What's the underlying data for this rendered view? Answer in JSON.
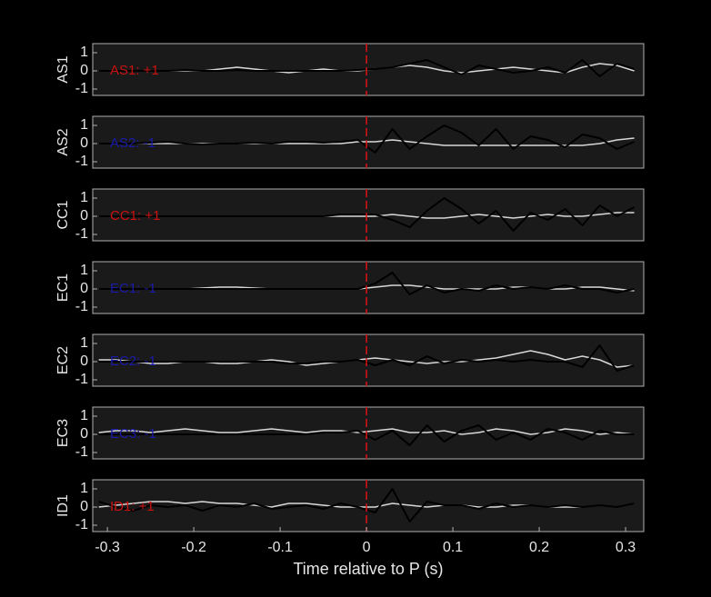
{
  "chart_data": [
    {
      "type": "line",
      "ylabel": "AS1",
      "annotation": "AS1: +1",
      "annotation_color": "#cc1111",
      "vline": 0,
      "vline_color": "#dd1111",
      "x": [
        -0.31,
        -0.29,
        -0.27,
        -0.25,
        -0.23,
        -0.21,
        -0.19,
        -0.17,
        -0.15,
        -0.13,
        -0.11,
        -0.09,
        -0.07,
        -0.05,
        -0.03,
        -0.01,
        0.01,
        0.03,
        0.05,
        0.07,
        0.09,
        0.11,
        0.13,
        0.15,
        0.17,
        0.19,
        0.21,
        0.23,
        0.25,
        0.27,
        0.29,
        0.31
      ],
      "xlim": [
        -0.317,
        0.321
      ],
      "ylim": [
        -1.35,
        1.5
      ],
      "yticks": [
        -1,
        0,
        1
      ],
      "series": [
        {
          "color": "#d8d8d8",
          "values": [
            0,
            0,
            0,
            0,
            0,
            0,
            0,
            0.1,
            0.2,
            0.1,
            0,
            -0.1,
            0,
            0.1,
            0,
            0,
            0.1,
            0.2,
            0.3,
            0.2,
            0,
            -0.1,
            0,
            0.1,
            0.2,
            0.1,
            0,
            -0.1,
            0.2,
            0.4,
            0.3,
            0
          ]
        },
        {
          "color": "#000000",
          "values": [
            0,
            0,
            0,
            0,
            0,
            0.05,
            0,
            0,
            0.05,
            0,
            0,
            0,
            0,
            0,
            0,
            0.05,
            0.1,
            0.2,
            0.4,
            0.6,
            0.2,
            -0.2,
            0.3,
            0.1,
            -0.1,
            0,
            0.2,
            -0.1,
            0.6,
            -0.3,
            0.4,
            0.1
          ]
        }
      ]
    },
    {
      "type": "line",
      "ylabel": "AS2",
      "annotation": "AS2: -1",
      "annotation_color": "#1a1aaa",
      "vline": 0,
      "vline_color": "#dd1111",
      "x": [
        -0.31,
        -0.29,
        -0.27,
        -0.25,
        -0.23,
        -0.21,
        -0.19,
        -0.17,
        -0.15,
        -0.13,
        -0.11,
        -0.09,
        -0.07,
        -0.05,
        -0.03,
        -0.01,
        0.01,
        0.03,
        0.05,
        0.07,
        0.09,
        0.11,
        0.13,
        0.15,
        0.17,
        0.19,
        0.21,
        0.23,
        0.25,
        0.27,
        0.29,
        0.31
      ],
      "xlim": [
        -0.317,
        0.321
      ],
      "ylim": [
        -1.35,
        1.5
      ],
      "yticks": [
        -1,
        0,
        1
      ],
      "series": [
        {
          "color": "#d8d8d8",
          "values": [
            0,
            0,
            0,
            0,
            0,
            0,
            0,
            0,
            0,
            0,
            0,
            0,
            0,
            0,
            0,
            0.1,
            0.1,
            0.2,
            0.1,
            0,
            -0.1,
            -0.1,
            -0.1,
            -0.1,
            -0.1,
            -0.1,
            -0.1,
            -0.1,
            -0.1,
            0,
            0.2,
            0.3
          ]
        },
        {
          "color": "#000000",
          "values": [
            0,
            0,
            0,
            0.05,
            0.1,
            0,
            -0.05,
            0,
            0,
            0.05,
            0,
            0.1,
            0.1,
            0.05,
            0.1,
            0.2,
            -0.5,
            0.8,
            -0.3,
            0.4,
            1.0,
            0.6,
            -0.1,
            0.8,
            -0.3,
            0.4,
            0.2,
            -0.2,
            0.5,
            0.3,
            -0.3,
            0.1
          ]
        }
      ]
    },
    {
      "type": "line",
      "ylabel": "CC1",
      "annotation": "CC1: +1",
      "annotation_color": "#cc1111",
      "vline": 0,
      "vline_color": "#dd1111",
      "x": [
        -0.31,
        -0.29,
        -0.27,
        -0.25,
        -0.23,
        -0.21,
        -0.19,
        -0.17,
        -0.15,
        -0.13,
        -0.11,
        -0.09,
        -0.07,
        -0.05,
        -0.03,
        -0.01,
        0.01,
        0.03,
        0.05,
        0.07,
        0.09,
        0.11,
        0.13,
        0.15,
        0.17,
        0.19,
        0.21,
        0.23,
        0.25,
        0.27,
        0.29,
        0.31
      ],
      "xlim": [
        -0.317,
        0.321
      ],
      "ylim": [
        -1.35,
        1.5
      ],
      "yticks": [
        -1,
        0,
        1
      ],
      "series": [
        {
          "color": "#d8d8d8",
          "values": [
            0,
            0,
            0,
            0,
            0,
            0,
            0,
            0,
            0,
            0,
            0,
            0,
            0,
            0,
            0,
            0,
            0,
            0.1,
            0,
            -0.1,
            -0.1,
            0,
            0.1,
            0,
            -0.1,
            0,
            0.1,
            0,
            0,
            0.1,
            0.2,
            0.2
          ]
        },
        {
          "color": "#000000",
          "values": [
            0,
            0,
            0,
            0,
            0,
            0,
            0,
            0,
            0,
            0,
            0,
            0,
            0,
            0,
            0.1,
            0.1,
            0.1,
            -0.2,
            -0.6,
            0.3,
            1.0,
            0.4,
            -0.4,
            0.3,
            -0.8,
            0.2,
            -0.2,
            0.4,
            -0.5,
            0.6,
            0,
            0.5
          ]
        }
      ]
    },
    {
      "type": "line",
      "ylabel": "EC1",
      "annotation": "EC1: -1",
      "annotation_color": "#1a1aaa",
      "vline": 0,
      "vline_color": "#dd1111",
      "x": [
        -0.31,
        -0.29,
        -0.27,
        -0.25,
        -0.23,
        -0.21,
        -0.19,
        -0.17,
        -0.15,
        -0.13,
        -0.11,
        -0.09,
        -0.07,
        -0.05,
        -0.03,
        -0.01,
        0.01,
        0.03,
        0.05,
        0.07,
        0.09,
        0.11,
        0.13,
        0.15,
        0.17,
        0.19,
        0.21,
        0.23,
        0.25,
        0.27,
        0.29,
        0.31
      ],
      "xlim": [
        -0.317,
        0.321
      ],
      "ylim": [
        -1.35,
        1.5
      ],
      "yticks": [
        -1,
        0,
        1
      ],
      "series": [
        {
          "color": "#d8d8d8",
          "values": [
            0,
            0,
            0,
            0,
            0,
            0,
            0.05,
            0.1,
            0.1,
            0.05,
            0,
            0,
            0,
            0,
            0,
            0,
            0.1,
            0.2,
            0.2,
            0.1,
            0,
            0,
            0,
            0,
            0.1,
            0.1,
            0,
            0,
            0.1,
            0.1,
            0,
            -0.1
          ]
        },
        {
          "color": "#000000",
          "values": [
            0,
            0,
            0,
            0,
            0,
            0,
            0,
            0,
            0,
            0,
            0,
            0,
            0,
            0,
            0,
            0,
            0.3,
            0.9,
            -0.3,
            0.2,
            -0.2,
            0,
            -0.1,
            0.2,
            0,
            0.1,
            0,
            0.2,
            0,
            0,
            -0.2,
            0
          ]
        }
      ]
    },
    {
      "type": "line",
      "ylabel": "EC2",
      "annotation": "EC2: -1",
      "annotation_color": "#1a1aaa",
      "vline": 0,
      "vline_color": "#dd1111",
      "x": [
        -0.31,
        -0.29,
        -0.27,
        -0.25,
        -0.23,
        -0.21,
        -0.19,
        -0.17,
        -0.15,
        -0.13,
        -0.11,
        -0.09,
        -0.07,
        -0.05,
        -0.03,
        -0.01,
        0.01,
        0.03,
        0.05,
        0.07,
        0.09,
        0.11,
        0.13,
        0.15,
        0.17,
        0.19,
        0.21,
        0.23,
        0.25,
        0.27,
        0.29,
        0.31
      ],
      "xlim": [
        -0.317,
        0.321
      ],
      "ylim": [
        -1.35,
        1.5
      ],
      "yticks": [
        -1,
        0,
        1
      ],
      "series": [
        {
          "color": "#d8d8d8",
          "values": [
            0.1,
            0.1,
            0,
            -0.1,
            -0.1,
            0,
            0,
            -0.1,
            -0.1,
            0,
            0.1,
            0,
            -0.2,
            -0.1,
            0,
            0.1,
            0.2,
            0.1,
            0,
            -0.1,
            0,
            0,
            0.1,
            0.2,
            0.4,
            0.6,
            0.4,
            0.1,
            0.3,
            0.1,
            -0.3,
            -0.2
          ]
        },
        {
          "color": "#000000",
          "values": [
            0,
            0,
            0,
            0,
            0,
            0,
            0,
            0,
            0,
            0,
            0,
            -0.1,
            -0.1,
            0,
            0,
            0.1,
            -0.2,
            0.1,
            -0.2,
            0.3,
            -0.1,
            0.1,
            0,
            0.1,
            0,
            0.1,
            0,
            0,
            -0.3,
            0.9,
            -0.5,
            -0.2
          ]
        }
      ]
    },
    {
      "type": "line",
      "ylabel": "EC3",
      "annotation": "EC3: -1",
      "annotation_color": "#1a1aaa",
      "vline": 0,
      "vline_color": "#dd1111",
      "x": [
        -0.31,
        -0.29,
        -0.27,
        -0.25,
        -0.23,
        -0.21,
        -0.19,
        -0.17,
        -0.15,
        -0.13,
        -0.11,
        -0.09,
        -0.07,
        -0.05,
        -0.03,
        -0.01,
        0.01,
        0.03,
        0.05,
        0.07,
        0.09,
        0.11,
        0.13,
        0.15,
        0.17,
        0.19,
        0.21,
        0.23,
        0.25,
        0.27,
        0.29,
        0.31
      ],
      "xlim": [
        -0.317,
        0.321
      ],
      "ylim": [
        -1.35,
        1.5
      ],
      "yticks": [
        -1,
        0,
        1
      ],
      "series": [
        {
          "color": "#d8d8d8",
          "values": [
            0.1,
            0.2,
            0.2,
            0.1,
            0.2,
            0.3,
            0.2,
            0.1,
            0.1,
            0.2,
            0.3,
            0.2,
            0.1,
            0.2,
            0.2,
            0.1,
            0.2,
            0.3,
            0.1,
            0.1,
            0.2,
            0,
            0.1,
            0.3,
            0.2,
            0,
            0.1,
            0.3,
            0.2,
            0,
            0.1,
            0
          ]
        },
        {
          "color": "#000000",
          "values": [
            0,
            0,
            0,
            0,
            0,
            0,
            0,
            0,
            0,
            0,
            0,
            0,
            0,
            0.1,
            0.1,
            0.2,
            -0.3,
            0.2,
            -0.6,
            0.5,
            -0.4,
            0.2,
            0.5,
            -0.3,
            0.1,
            -0.3,
            0.3,
            0.1,
            -0.3,
            0.2,
            0,
            0
          ]
        }
      ]
    },
    {
      "type": "line",
      "ylabel": "ID1",
      "annotation": "ID1: +1",
      "annotation_color": "#cc1111",
      "vline": 0,
      "vline_color": "#dd1111",
      "x": [
        -0.31,
        -0.29,
        -0.27,
        -0.25,
        -0.23,
        -0.21,
        -0.19,
        -0.17,
        -0.15,
        -0.13,
        -0.11,
        -0.09,
        -0.07,
        -0.05,
        -0.03,
        -0.01,
        0.01,
        0.03,
        0.05,
        0.07,
        0.09,
        0.11,
        0.13,
        0.15,
        0.17,
        0.19,
        0.21,
        0.23,
        0.25,
        0.27,
        0.29,
        0.31
      ],
      "xlim": [
        -0.317,
        0.321
      ],
      "ylim": [
        -1.35,
        1.5
      ],
      "yticks": [
        -1,
        0,
        1
      ],
      "xticks": [
        -0.3,
        -0.2,
        -0.1,
        0,
        0.1,
        0.2,
        0.3
      ],
      "xlabel": "Time relative to P (s)",
      "series": [
        {
          "color": "#d8d8d8",
          "values": [
            0,
            0.1,
            0.2,
            0.3,
            0.3,
            0.2,
            0.3,
            0.2,
            0.2,
            0.1,
            0,
            0.2,
            0.2,
            0.1,
            0,
            0,
            0,
            0.2,
            0.1,
            0,
            0.1,
            0.1,
            0,
            0,
            0.1,
            0.1,
            0,
            0,
            0,
            0.1,
            0,
            0.2
          ]
        },
        {
          "color": "#000000",
          "values": [
            0.3,
            0,
            -0.2,
            0.1,
            0,
            0.1,
            -0.2,
            0.1,
            0,
            0.2,
            -0.1,
            0,
            0.1,
            -0.1,
            0.2,
            0,
            -0.3,
            1.0,
            -0.8,
            0.3,
            0.1,
            0.1,
            -0.1,
            0.2,
            0,
            0.1,
            0,
            0.1,
            0,
            0.1,
            0,
            0.2
          ]
        }
      ]
    }
  ]
}
